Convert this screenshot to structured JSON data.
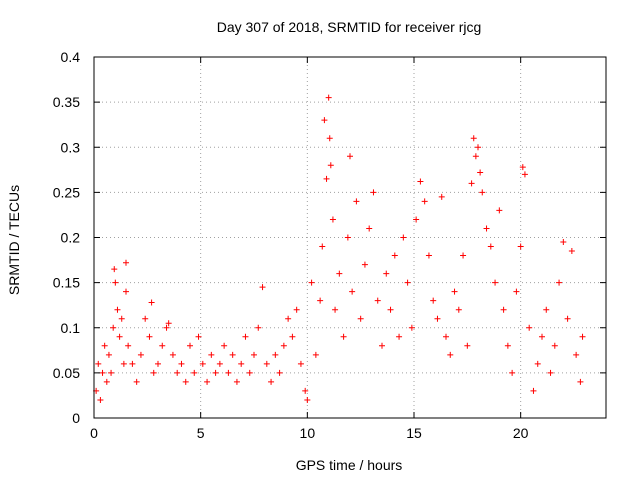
{
  "chart_data": {
    "type": "scatter",
    "title": "Day 307 of 2018, SRMTID for receiver rjcg",
    "xlabel": "GPS time / hours",
    "ylabel": "SRMTID / TECUs",
    "xlim": [
      0,
      24
    ],
    "ylim": [
      0,
      0.4
    ],
    "xticks": [
      0,
      5,
      10,
      15,
      20
    ],
    "xtick_labels": [
      "0",
      "5",
      "10",
      "15",
      "20"
    ],
    "yticks": [
      0,
      0.05,
      0.1,
      0.15,
      0.2,
      0.25,
      0.3,
      0.35,
      0.4
    ],
    "ytick_labels": [
      "0",
      "0.05",
      "0.1",
      "0.15",
      "0.2",
      "0.25",
      "0.3",
      "0.35",
      "0.4"
    ],
    "grid": true,
    "marker": "plus",
    "color": "#ff0000",
    "series": [
      {
        "name": "SRMTID",
        "points": [
          [
            0.1,
            0.03
          ],
          [
            0.2,
            0.06
          ],
          [
            0.3,
            0.02
          ],
          [
            0.4,
            0.05
          ],
          [
            0.5,
            0.08
          ],
          [
            0.6,
            0.04
          ],
          [
            0.7,
            0.07
          ],
          [
            0.8,
            0.05
          ],
          [
            0.9,
            0.1
          ],
          [
            0.95,
            0.165
          ],
          [
            1.0,
            0.15
          ],
          [
            1.1,
            0.12
          ],
          [
            1.2,
            0.09
          ],
          [
            1.3,
            0.11
          ],
          [
            1.4,
            0.06
          ],
          [
            1.5,
            0.14
          ],
          [
            1.5,
            0.172
          ],
          [
            1.6,
            0.08
          ],
          [
            1.8,
            0.06
          ],
          [
            2.0,
            0.04
          ],
          [
            2.2,
            0.07
          ],
          [
            2.4,
            0.11
          ],
          [
            2.6,
            0.09
          ],
          [
            2.7,
            0.128
          ],
          [
            2.8,
            0.05
          ],
          [
            3.0,
            0.06
          ],
          [
            3.2,
            0.08
          ],
          [
            3.4,
            0.1
          ],
          [
            3.5,
            0.105
          ],
          [
            3.7,
            0.07
          ],
          [
            3.9,
            0.05
          ],
          [
            4.1,
            0.06
          ],
          [
            4.3,
            0.04
          ],
          [
            4.5,
            0.08
          ],
          [
            4.7,
            0.05
          ],
          [
            4.9,
            0.09
          ],
          [
            5.1,
            0.06
          ],
          [
            5.3,
            0.04
          ],
          [
            5.5,
            0.07
          ],
          [
            5.7,
            0.05
          ],
          [
            5.9,
            0.06
          ],
          [
            6.1,
            0.08
          ],
          [
            6.3,
            0.05
          ],
          [
            6.5,
            0.07
          ],
          [
            6.7,
            0.04
          ],
          [
            6.9,
            0.06
          ],
          [
            7.1,
            0.09
          ],
          [
            7.3,
            0.05
          ],
          [
            7.5,
            0.07
          ],
          [
            7.7,
            0.1
          ],
          [
            7.9,
            0.145
          ],
          [
            8.1,
            0.06
          ],
          [
            8.3,
            0.04
          ],
          [
            8.5,
            0.07
          ],
          [
            8.7,
            0.05
          ],
          [
            8.9,
            0.08
          ],
          [
            9.1,
            0.11
          ],
          [
            9.3,
            0.09
          ],
          [
            9.5,
            0.12
          ],
          [
            9.7,
            0.06
          ],
          [
            9.9,
            0.03
          ],
          [
            10.0,
            0.02
          ],
          [
            10.2,
            0.15
          ],
          [
            10.4,
            0.07
          ],
          [
            10.6,
            0.13
          ],
          [
            10.7,
            0.19
          ],
          [
            10.8,
            0.33
          ],
          [
            10.9,
            0.265
          ],
          [
            11.0,
            0.355
          ],
          [
            11.05,
            0.31
          ],
          [
            11.1,
            0.28
          ],
          [
            11.2,
            0.22
          ],
          [
            11.3,
            0.12
          ],
          [
            11.5,
            0.16
          ],
          [
            11.7,
            0.09
          ],
          [
            11.9,
            0.2
          ],
          [
            12.0,
            0.29
          ],
          [
            12.1,
            0.14
          ],
          [
            12.3,
            0.24
          ],
          [
            12.5,
            0.11
          ],
          [
            12.7,
            0.17
          ],
          [
            12.9,
            0.21
          ],
          [
            13.1,
            0.25
          ],
          [
            13.3,
            0.13
          ],
          [
            13.5,
            0.08
          ],
          [
            13.7,
            0.16
          ],
          [
            13.9,
            0.12
          ],
          [
            14.1,
            0.18
          ],
          [
            14.3,
            0.09
          ],
          [
            14.5,
            0.2
          ],
          [
            14.7,
            0.15
          ],
          [
            14.9,
            0.1
          ],
          [
            15.1,
            0.22
          ],
          [
            15.3,
            0.262
          ],
          [
            15.5,
            0.24
          ],
          [
            15.7,
            0.18
          ],
          [
            15.9,
            0.13
          ],
          [
            16.1,
            0.11
          ],
          [
            16.3,
            0.245
          ],
          [
            16.5,
            0.09
          ],
          [
            16.7,
            0.07
          ],
          [
            16.9,
            0.14
          ],
          [
            17.1,
            0.12
          ],
          [
            17.3,
            0.18
          ],
          [
            17.5,
            0.08
          ],
          [
            17.7,
            0.26
          ],
          [
            17.8,
            0.31
          ],
          [
            17.9,
            0.29
          ],
          [
            18.0,
            0.3
          ],
          [
            18.1,
            0.272
          ],
          [
            18.2,
            0.25
          ],
          [
            18.4,
            0.21
          ],
          [
            18.6,
            0.19
          ],
          [
            18.8,
            0.15
          ],
          [
            19.0,
            0.23
          ],
          [
            19.2,
            0.12
          ],
          [
            19.4,
            0.08
          ],
          [
            19.6,
            0.05
          ],
          [
            19.8,
            0.14
          ],
          [
            20.0,
            0.19
          ],
          [
            20.1,
            0.278
          ],
          [
            20.2,
            0.27
          ],
          [
            20.4,
            0.1
          ],
          [
            20.6,
            0.03
          ],
          [
            20.8,
            0.06
          ],
          [
            21.0,
            0.09
          ],
          [
            21.2,
            0.12
          ],
          [
            21.4,
            0.05
          ],
          [
            21.6,
            0.08
          ],
          [
            21.8,
            0.15
          ],
          [
            22.0,
            0.195
          ],
          [
            22.2,
            0.11
          ],
          [
            22.4,
            0.185
          ],
          [
            22.6,
            0.07
          ],
          [
            22.8,
            0.04
          ],
          [
            22.9,
            0.09
          ]
        ]
      }
    ]
  }
}
